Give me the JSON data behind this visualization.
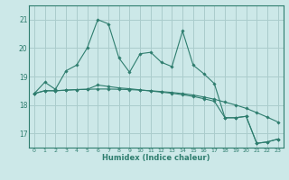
{
  "xlabel": "Humidex (Indice chaleur)",
  "background_color": "#cce8e8",
  "grid_color": "#aacccc",
  "line_color": "#2e7d6e",
  "x_ticks": [
    0,
    1,
    2,
    3,
    4,
    5,
    6,
    7,
    8,
    9,
    10,
    11,
    12,
    13,
    14,
    15,
    16,
    17,
    18,
    19,
    20,
    21,
    22,
    23
  ],
  "ylim": [
    16.5,
    21.5
  ],
  "xlim": [
    -0.5,
    23.5
  ],
  "y_ticks": [
    17,
    18,
    19,
    20,
    21
  ],
  "line1_y": [
    18.4,
    18.8,
    18.55,
    19.2,
    19.4,
    20.0,
    21.0,
    20.85,
    19.65,
    19.15,
    19.8,
    19.85,
    19.5,
    19.35,
    20.6,
    19.4,
    19.1,
    18.75,
    17.55,
    17.55,
    17.6,
    16.65,
    16.7,
    16.8
  ],
  "line2_y": [
    18.4,
    18.5,
    18.5,
    18.52,
    18.54,
    18.55,
    18.56,
    18.56,
    18.55,
    18.54,
    18.52,
    18.5,
    18.47,
    18.44,
    18.4,
    18.35,
    18.28,
    18.2,
    18.1,
    18.0,
    17.88,
    17.73,
    17.57,
    17.4
  ],
  "line3_y": [
    18.4,
    18.5,
    18.5,
    18.52,
    18.54,
    18.55,
    18.7,
    18.65,
    18.6,
    18.57,
    18.53,
    18.49,
    18.45,
    18.41,
    18.36,
    18.3,
    18.22,
    18.13,
    17.55,
    17.55,
    17.6,
    16.65,
    16.7,
    16.8
  ]
}
